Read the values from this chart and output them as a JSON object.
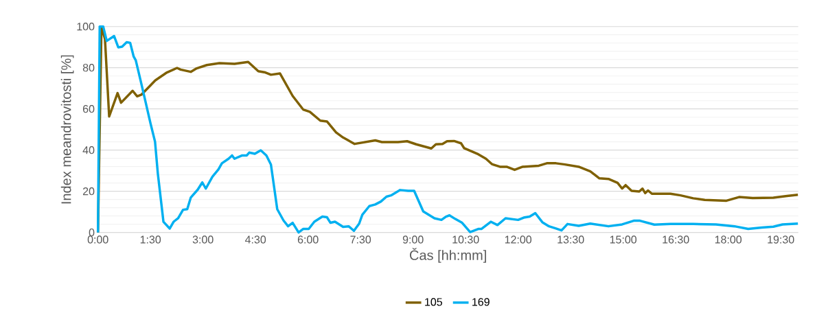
{
  "chart_data": {
    "type": "line",
    "xlabel": "Čas [hh:mm]",
    "ylabel": "Index meandrovitosti [%]",
    "xlim": [
      0,
      20
    ],
    "ylim": [
      0,
      100
    ],
    "yticks": [
      0,
      20,
      40,
      60,
      80,
      100
    ],
    "xticks": [
      {
        "value": 0,
        "label": "0:00"
      },
      {
        "value": 1.5,
        "label": "1:30"
      },
      {
        "value": 3,
        "label": "3:00"
      },
      {
        "value": 4.5,
        "label": "4:30"
      },
      {
        "value": 6,
        "label": "6:00"
      },
      {
        "value": 7.5,
        "label": "7:30"
      },
      {
        "value": 9,
        "label": "9:00"
      },
      {
        "value": 10.5,
        "label": "10:30"
      },
      {
        "value": 12,
        "label": "12:00"
      },
      {
        "value": 13.5,
        "label": "13:30"
      },
      {
        "value": 15,
        "label": "15:00"
      },
      {
        "value": 16.5,
        "label": "16:30"
      },
      {
        "value": 18,
        "label": "18:00"
      },
      {
        "value": 19.5,
        "label": "19:30"
      }
    ],
    "grid": "y",
    "legend": "bottom",
    "marker": "none",
    "line_style": "solid",
    "series": [
      {
        "name": "105",
        "color": "#7f6000",
        "x": [
          0,
          0.1,
          0.2,
          0.32,
          0.56,
          0.66,
          0.99,
          1.12,
          1.24,
          1.64,
          1.97,
          2.26,
          2.36,
          2.65,
          2.82,
          3.11,
          3.47,
          3.9,
          4.29,
          4.58,
          4.78,
          4.94,
          5.2,
          5.56,
          5.86,
          6.05,
          6.35,
          6.54,
          6.8,
          7.0,
          7.33,
          7.92,
          8.11,
          8.57,
          8.83,
          9.09,
          9.52,
          9.65,
          9.84,
          9.97,
          10.17,
          10.37,
          10.46,
          10.86,
          11.08,
          11.25,
          11.48,
          11.67,
          11.9,
          12.13,
          12.59,
          12.82,
          13.08,
          13.34,
          13.73,
          14.06,
          14.32,
          14.58,
          14.84,
          14.97,
          15.07,
          15.24,
          15.46,
          15.55,
          15.63,
          15.71,
          15.82,
          16.35,
          16.64,
          17.0,
          17.33,
          17.95,
          18.31,
          18.7,
          19.29,
          19.68,
          19.99
        ],
        "values": [
          0,
          100,
          94,
          56.3,
          67.7,
          63,
          68.8,
          66.1,
          66.9,
          73.9,
          77.7,
          79.9,
          79.1,
          78,
          79.7,
          81.3,
          82.2,
          81.9,
          82.8,
          78.3,
          77.7,
          76.6,
          77.2,
          66.3,
          59.7,
          58.6,
          54.3,
          53.9,
          48.6,
          46.1,
          43,
          44.7,
          43.9,
          43.9,
          44.3,
          42.8,
          40.8,
          42.8,
          43,
          44.3,
          44.4,
          43.3,
          40.9,
          38,
          35.8,
          33.2,
          31.9,
          31.9,
          30.4,
          31.9,
          32.4,
          33.6,
          33.6,
          33,
          31.9,
          29.7,
          26.3,
          26,
          24.1,
          21.3,
          23,
          20.2,
          19.9,
          21.3,
          19.1,
          20.4,
          18.8,
          18.8,
          18,
          16.6,
          15.8,
          15.4,
          17.2,
          16.7,
          16.9,
          17.7,
          18.3
        ]
      },
      {
        "name": "169",
        "color": "#00b0f0",
        "x": [
          0,
          0.05,
          0.15,
          0.25,
          0.46,
          0.58,
          0.69,
          0.82,
          0.92,
          1.02,
          1.08,
          1.22,
          1.35,
          1.5,
          1.63,
          1.71,
          1.87,
          2.05,
          2.16,
          2.29,
          2.43,
          2.55,
          2.65,
          2.85,
          2.98,
          3.08,
          3.27,
          3.44,
          3.54,
          3.73,
          3.83,
          3.9,
          4.12,
          4.25,
          4.32,
          4.48,
          4.65,
          4.81,
          4.94,
          5.12,
          5.3,
          5.43,
          5.56,
          5.73,
          5.86,
          6.02,
          6.18,
          6.41,
          6.54,
          6.64,
          6.77,
          7.0,
          7.16,
          7.31,
          7.46,
          7.55,
          7.75,
          7.92,
          8.08,
          8.24,
          8.37,
          8.63,
          8.86,
          9.03,
          9.16,
          9.29,
          9.61,
          9.81,
          9.94,
          10.04,
          10.2,
          10.4,
          10.63,
          10.86,
          10.95,
          11.22,
          11.41,
          11.64,
          12.0,
          12.16,
          12.33,
          12.49,
          12.69,
          12.88,
          13.08,
          13.24,
          13.41,
          13.73,
          14.06,
          14.58,
          14.97,
          15.3,
          15.48,
          15.89,
          16.35,
          17.0,
          17.65,
          18.18,
          18.57,
          18.96,
          19.29,
          19.55,
          19.99
        ],
        "values": [
          0,
          100,
          100,
          93,
          95.4,
          89.9,
          90.2,
          92.4,
          92.1,
          85.4,
          83.6,
          73.6,
          64.1,
          53,
          44.1,
          28.6,
          5.2,
          1.9,
          5.2,
          6.9,
          11,
          11.3,
          16.9,
          20.8,
          24.3,
          21.3,
          27.1,
          30.6,
          33.6,
          35.8,
          37.4,
          35.8,
          37.4,
          37.4,
          38.8,
          38.2,
          39.9,
          37.4,
          33,
          11.3,
          5.8,
          3,
          4.7,
          0,
          1.7,
          1.7,
          5.2,
          7.7,
          7.4,
          4.7,
          5.2,
          2.7,
          3,
          0.8,
          4.3,
          8.6,
          12.8,
          13.6,
          15,
          17.4,
          18,
          20.6,
          20.2,
          20.2,
          15.2,
          10.2,
          6.9,
          6.1,
          7.7,
          8.3,
          6.6,
          4.7,
          0.2,
          1.7,
          1.7,
          5.2,
          3.6,
          6.9,
          6.1,
          7.2,
          7.7,
          9.4,
          5,
          3,
          1.9,
          1,
          4.1,
          3.2,
          4.3,
          3,
          3.9,
          5.7,
          5.7,
          3.8,
          4.1,
          4.1,
          3.9,
          3,
          1.7,
          2.4,
          2.8,
          3.9,
          4.3
        ]
      }
    ]
  }
}
